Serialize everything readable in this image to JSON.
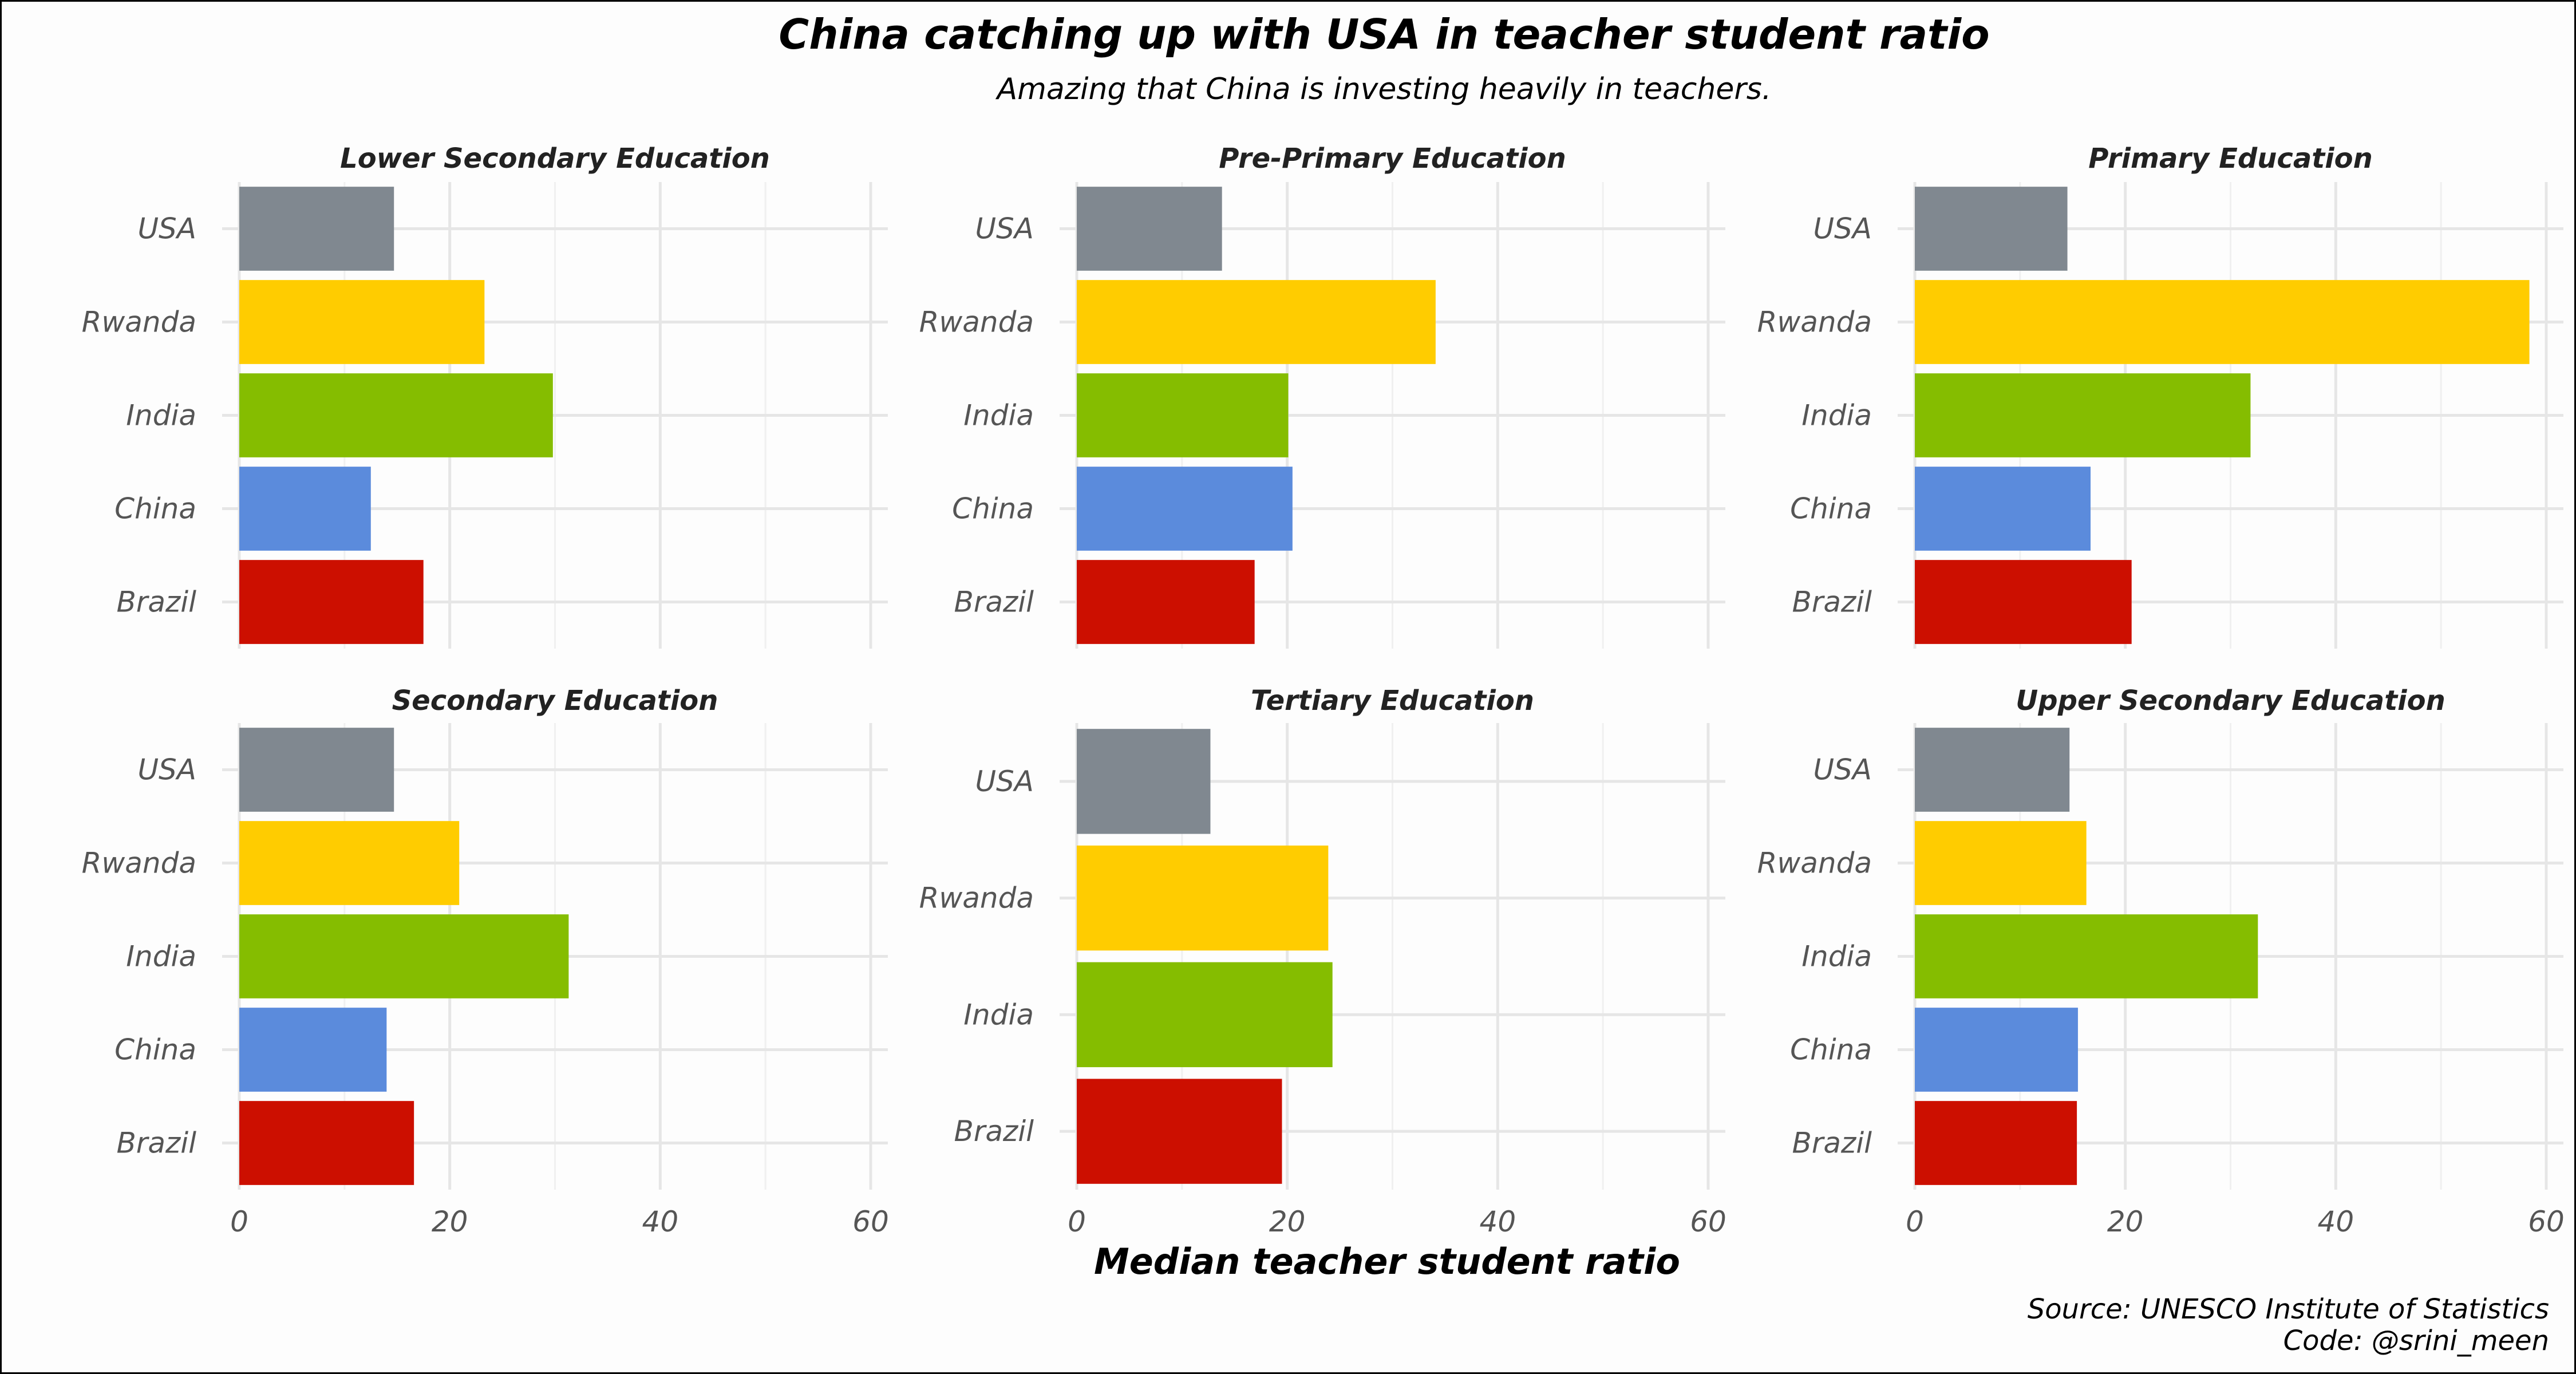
{
  "chart_data": {
    "type": "bar",
    "orientation": "horizontal",
    "title": "China catching up with USA in teacher student ratio",
    "subtitle": "Amazing that China is investing heavily in teachers.",
    "xlabel": "Median teacher student ratio",
    "xlim": [
      0,
      60
    ],
    "xticks": [
      "0",
      "20",
      "40",
      "60"
    ],
    "grid": true,
    "colors": {
      "USA": "#808890",
      "Rwanda": "#ffcc00",
      "India": "#85bd00",
      "China": "#5b8bdc",
      "Brazil": "#cc0f00"
    },
    "caption": [
      "Source: UNESCO Institute of Statistics",
      "Code: @srini_meen"
    ],
    "panels": [
      {
        "title": "Lower Secondary Education",
        "categories": [
          "USA",
          "Rwanda",
          "India",
          "China",
          "Brazil"
        ],
        "values": [
          14.7,
          23.3,
          29.8,
          12.5,
          17.5
        ]
      },
      {
        "title": "Pre-Primary Education",
        "categories": [
          "USA",
          "Rwanda",
          "India",
          "China",
          "Brazil"
        ],
        "values": [
          13.8,
          34.1,
          20.1,
          20.5,
          16.9
        ]
      },
      {
        "title": "Primary Education",
        "categories": [
          "USA",
          "Rwanda",
          "India",
          "China",
          "Brazil"
        ],
        "values": [
          14.5,
          58.4,
          31.9,
          16.7,
          20.6
        ]
      },
      {
        "title": "Secondary Education",
        "categories": [
          "USA",
          "Rwanda",
          "India",
          "China",
          "Brazil"
        ],
        "values": [
          14.7,
          20.9,
          31.3,
          14.0,
          16.6
        ]
      },
      {
        "title": "Tertiary Education",
        "categories": [
          "USA",
          "Rwanda",
          "India",
          "Brazil"
        ],
        "values": [
          12.7,
          23.9,
          24.3,
          19.5
        ]
      },
      {
        "title": "Upper Secondary Education",
        "categories": [
          "USA",
          "Rwanda",
          "India",
          "China",
          "Brazil"
        ],
        "values": [
          14.7,
          16.3,
          32.6,
          15.5,
          15.4
        ]
      }
    ]
  }
}
